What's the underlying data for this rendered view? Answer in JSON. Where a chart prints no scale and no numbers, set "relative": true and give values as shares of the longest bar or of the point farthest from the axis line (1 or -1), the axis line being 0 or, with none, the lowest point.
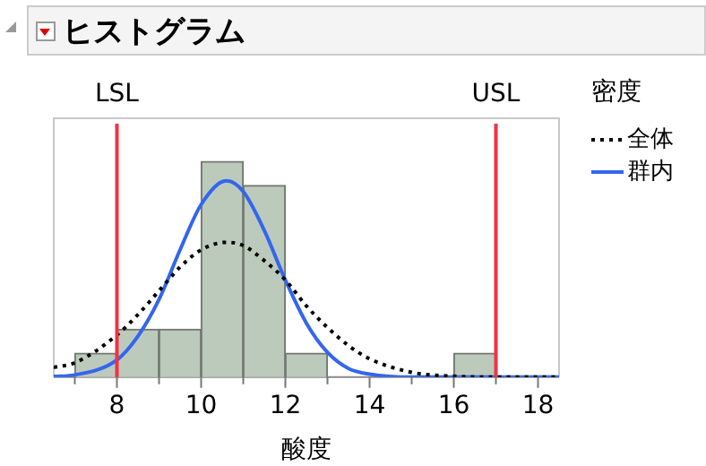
{
  "chart_data": {
    "type": "histogram",
    "title": "ヒストグラム",
    "xlabel": "酸度",
    "legend_title": "密度",
    "legend": "right",
    "relative": true,
    "grid": false,
    "bins": [
      7,
      8,
      9,
      10,
      11,
      12,
      13,
      14,
      15,
      16,
      17
    ],
    "values": [
      0.111,
      0.222,
      0.222,
      1,
      0.889,
      0.111,
      0,
      0,
      0,
      0.111
    ],
    "color": "#bccabc",
    "xlim": [
      6.5,
      18.5
    ],
    "xticks": [
      {
        "value": 7,
        "label": null
      },
      8,
      {
        "value": 9,
        "label": null
      },
      10,
      {
        "value": 11,
        "label": null
      },
      12,
      {
        "value": 13,
        "label": null
      },
      14,
      {
        "value": 15,
        "label": null
      },
      16,
      {
        "value": 17,
        "label": null
      },
      18
    ],
    "series": [
      {
        "name": "全体",
        "type": "line",
        "color": "#000000",
        "line_style": "dotted",
        "x": [
          6.5,
          7,
          8,
          8.5,
          9,
          9.5,
          10,
          10.6,
          11,
          11.5,
          12,
          12.5,
          13,
          13.5,
          14,
          15,
          16,
          17,
          18.5
        ],
        "values": [
          0.045,
          0.066,
          0.195,
          0.29,
          0.4,
          0.51,
          0.59,
          0.625,
          0.61,
          0.54,
          0.45,
          0.33,
          0.23,
          0.146,
          0.085,
          0.022,
          0.004,
          0,
          0
        ]
      },
      {
        "name": "群内",
        "type": "line",
        "color": "#3366ee",
        "line_style": "solid",
        "x": [
          6.5,
          7,
          8,
          8.5,
          9,
          9.5,
          10,
          10.6,
          11,
          11.5,
          12,
          12.5,
          13,
          13.5,
          14,
          15,
          18.5
        ],
        "values": [
          0.003,
          0.01,
          0.08,
          0.19,
          0.36,
          0.59,
          0.8,
          0.91,
          0.86,
          0.68,
          0.45,
          0.25,
          0.115,
          0.04,
          0.014,
          0,
          0
        ]
      }
    ],
    "ref_lines": [
      {
        "axis": "x",
        "value": 8,
        "label": "LSL",
        "color": "#ee3344"
      },
      {
        "axis": "x",
        "value": 17,
        "label": "USL",
        "color": "#ee3344"
      }
    ]
  }
}
